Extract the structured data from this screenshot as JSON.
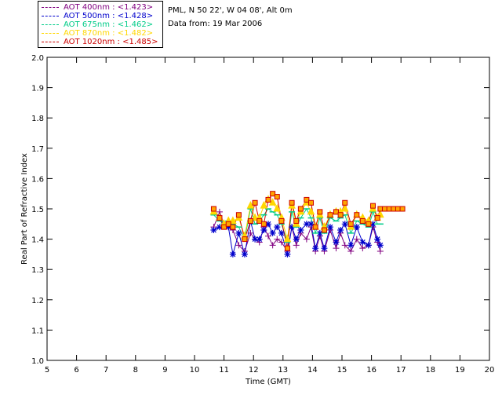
{
  "header": {
    "location": "PML, N 50 22', W 04 08', Alt 0m",
    "date": "Data from: 19 Mar 2006"
  },
  "chart_data": {
    "type": "line",
    "xlabel": "Time (GMT)",
    "ylabel": "Real Part of Refractive Index",
    "xlim": [
      5,
      20
    ],
    "ylim": [
      1.0,
      2.0
    ],
    "xticks": [
      "5",
      "6",
      "7",
      "8",
      "9",
      "10",
      "11",
      "12",
      "13",
      "14",
      "15",
      "16",
      "17",
      "18",
      "19",
      "20"
    ],
    "yticks": [
      "1.0",
      "1.1",
      "1.2",
      "1.3",
      "1.4",
      "1.5",
      "1.6",
      "1.7",
      "1.8",
      "1.9",
      "2.0"
    ],
    "grid": false,
    "legend_placement": "top-left outside",
    "x": [
      10.65,
      10.85,
      11.0,
      11.15,
      11.3,
      11.5,
      11.7,
      11.9,
      12.05,
      12.2,
      12.35,
      12.5,
      12.65,
      12.8,
      12.95,
      13.15,
      13.3,
      13.45,
      13.6,
      13.8,
      13.95,
      14.1,
      14.25,
      14.4,
      14.6,
      14.8,
      14.95,
      15.1,
      15.3,
      15.5,
      15.7,
      15.9,
      16.05,
      16.2,
      16.3
    ],
    "series": [
      {
        "name": "AOT  400nm : <1.423>",
        "color": "#800080",
        "marker": "plus",
        "values": [
          1.44,
          1.49,
          1.45,
          1.44,
          1.43,
          1.38,
          1.36,
          1.42,
          1.4,
          1.39,
          1.44,
          1.41,
          1.38,
          1.4,
          1.39,
          1.36,
          1.44,
          1.38,
          1.42,
          1.4,
          1.44,
          1.36,
          1.41,
          1.36,
          1.43,
          1.37,
          1.42,
          1.38,
          1.36,
          1.4,
          1.37,
          1.38,
          1.44,
          1.39,
          1.36
        ]
      },
      {
        "name": "AOT  500nm : <1.428>",
        "color": "#0000cc",
        "marker": "asterisk",
        "values": [
          1.43,
          1.44,
          1.45,
          1.44,
          1.35,
          1.42,
          1.35,
          1.46,
          1.4,
          1.4,
          1.43,
          1.45,
          1.42,
          1.44,
          1.42,
          1.35,
          1.44,
          1.4,
          1.43,
          1.45,
          1.45,
          1.37,
          1.42,
          1.37,
          1.44,
          1.39,
          1.43,
          1.45,
          1.38,
          1.44,
          1.39,
          1.38,
          1.45,
          1.4,
          1.38
        ]
      },
      {
        "name": "AOT  675nm : <1.462>",
        "color": "#00cc88",
        "marker": "dash",
        "values": [
          1.48,
          1.46,
          1.45,
          1.46,
          1.45,
          1.44,
          1.4,
          1.5,
          1.45,
          1.46,
          1.48,
          1.5,
          1.49,
          1.48,
          1.45,
          1.39,
          1.49,
          1.44,
          1.47,
          1.5,
          1.47,
          1.42,
          1.47,
          1.42,
          1.47,
          1.46,
          1.47,
          1.48,
          1.42,
          1.46,
          1.45,
          1.44,
          1.49,
          1.45,
          1.45
        ]
      },
      {
        "name": "AOT  870nm : <1.482>",
        "color": "#ffd700",
        "marker": "triangle",
        "values": [
          1.49,
          1.47,
          1.45,
          1.46,
          1.46,
          1.47,
          1.41,
          1.51,
          1.47,
          1.47,
          1.51,
          1.53,
          1.52,
          1.5,
          1.47,
          1.4,
          1.51,
          1.45,
          1.49,
          1.52,
          1.49,
          1.44,
          1.48,
          1.44,
          1.48,
          1.49,
          1.49,
          1.5,
          1.44,
          1.48,
          1.47,
          1.46,
          1.5,
          1.47,
          1.48
        ]
      },
      {
        "name": "AOT 1020nm : <1.485>",
        "color": "#cc0000",
        "marker": "square",
        "values": [
          1.5,
          1.47,
          1.44,
          1.45,
          1.44,
          1.48,
          1.4,
          1.46,
          1.52,
          1.46,
          1.45,
          1.53,
          1.55,
          1.54,
          1.46,
          1.37,
          1.52,
          1.46,
          1.5,
          1.53,
          1.52,
          1.44,
          1.49,
          1.43,
          1.48,
          1.49,
          1.48,
          1.52,
          1.45,
          1.48,
          1.46,
          1.45,
          1.51,
          1.47,
          1.5
        ]
      }
    ],
    "tail": {
      "x": [
        16.45,
        16.6,
        16.75,
        16.9,
        17.05
      ],
      "values": [
        1.5,
        1.5,
        1.5,
        1.5,
        1.5
      ],
      "color": "#cc0000",
      "fill": "#ffa500"
    }
  }
}
